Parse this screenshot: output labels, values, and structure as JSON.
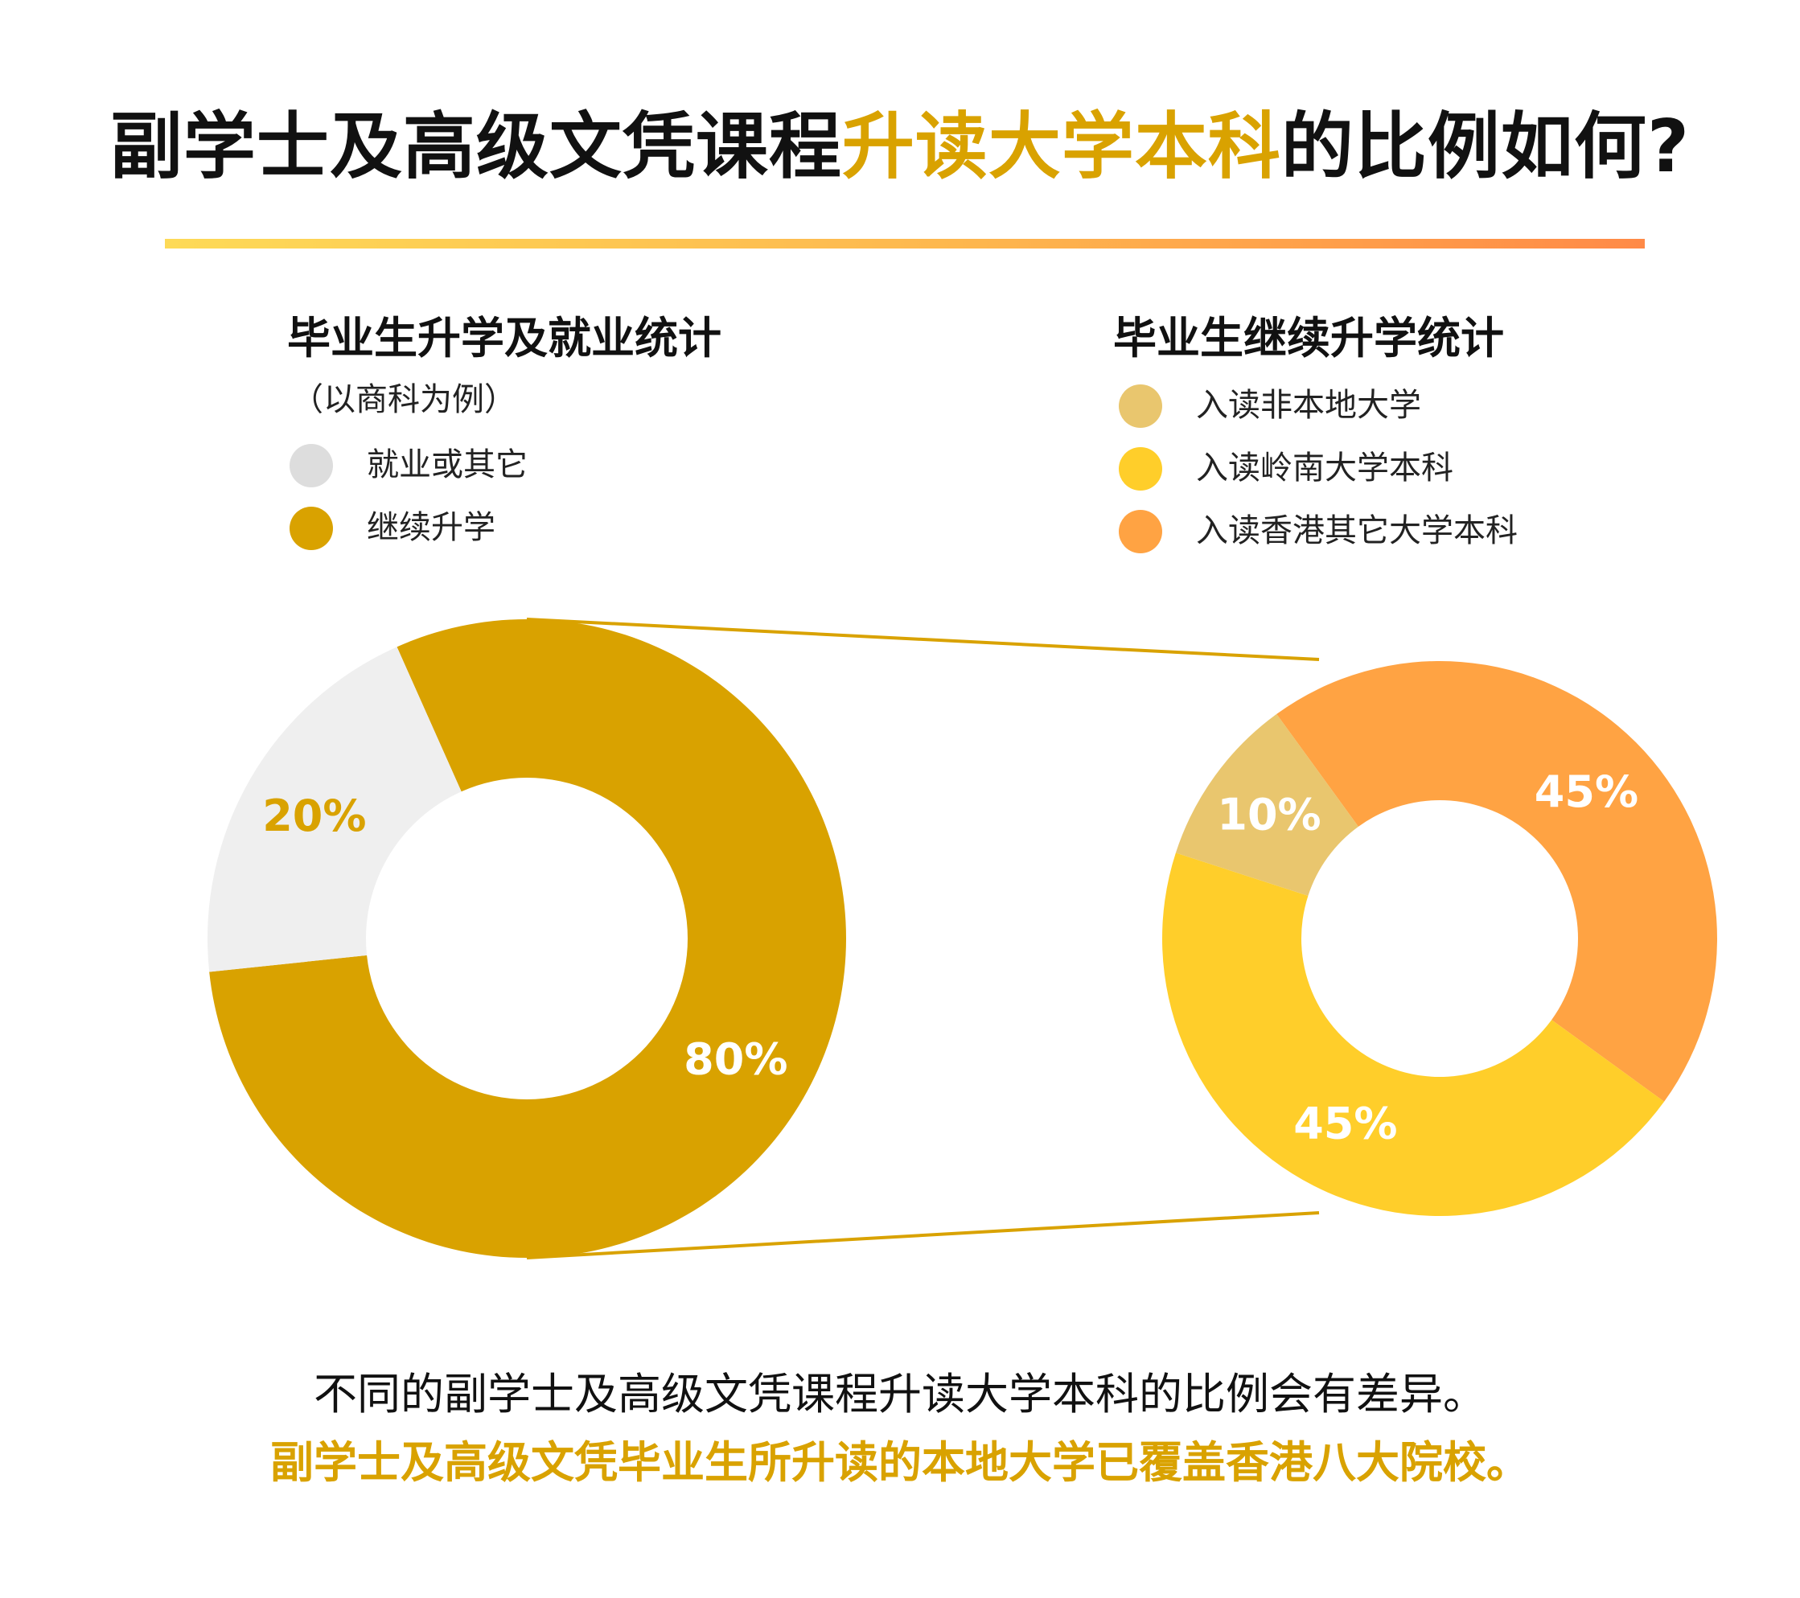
{
  "title": {
    "part1": "副学士及高级文凭课程",
    "highlight": "升读大学本科",
    "part2": "的比例如何?"
  },
  "colors": {
    "dark_gold": "#D9A200",
    "light_gray": "#EFEFEF",
    "legend_gray": "#DDDDDD",
    "tan": "#E9C66E",
    "yellow": "#FFCE2A",
    "orange": "#FFA343"
  },
  "left_section": {
    "title": "毕业生升学及就业统计",
    "note": "（以商科为例）",
    "legend": [
      {
        "label": "就业或其它",
        "color": "#DDDDDD"
      },
      {
        "label": "继续升学",
        "color": "#D9A200"
      }
    ]
  },
  "right_section": {
    "title": "毕业生继续升学统计",
    "legend": [
      {
        "label": "入读非本地大学",
        "color": "#E9C66E"
      },
      {
        "label": "入读岭南大学本科",
        "color": "#FFCE2A"
      },
      {
        "label": "入读香港其它大学本科",
        "color": "#FFA343"
      }
    ]
  },
  "chart_data": [
    {
      "type": "pie",
      "donut": true,
      "slices": [
        {
          "label": "继续升学",
          "value": 80,
          "display": "80%",
          "color": "#D9A200",
          "text_color": "#FFFFFF"
        },
        {
          "label": "就业或其它",
          "value": 20,
          "display": "20%",
          "color": "#EFEFEF",
          "text_color": "#D9A200"
        }
      ]
    },
    {
      "type": "pie",
      "donut": true,
      "slices": [
        {
          "label": "入读香港其它大学本科",
          "value": 45,
          "display": "45%",
          "color": "#FFA343",
          "text_color": "#FFFFFF"
        },
        {
          "label": "入读岭南大学本科",
          "value": 45,
          "display": "45%",
          "color": "#FFCE2A",
          "text_color": "#FFFFFF"
        },
        {
          "label": "入读非本地大学",
          "value": 10,
          "display": "10%",
          "color": "#E9C66E",
          "text_color": "#FFFFFF"
        }
      ]
    }
  ],
  "footer": {
    "line1": "不同的副学士及高级文凭课程升读大学本科的比例会有差异。",
    "line2": "副学士及高级文凭毕业生所升读的本地大学已覆盖香港八大院校。"
  }
}
